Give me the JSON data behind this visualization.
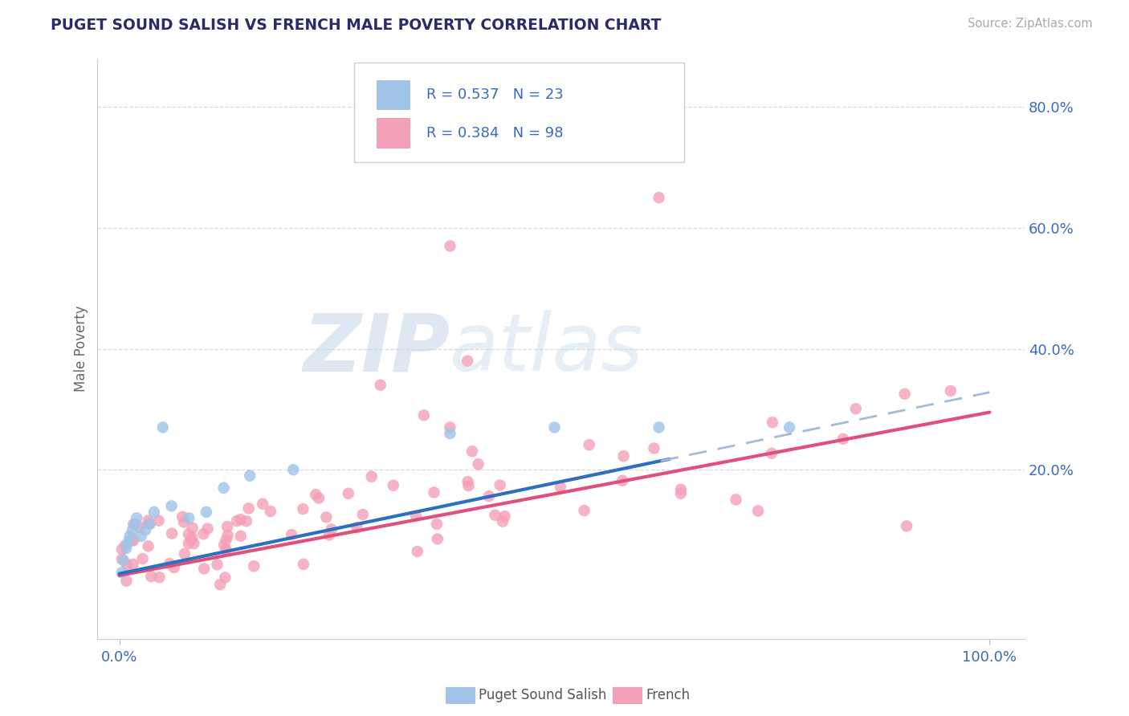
{
  "title": "PUGET SOUND SALISH VS FRENCH MALE POVERTY CORRELATION CHART",
  "source_text": "Source: ZipAtlas.com",
  "ylabel": "Male Poverty",
  "salish_color": "#a0c4e8",
  "french_color": "#f4a0b8",
  "salish_line_color": "#2e6fbe",
  "french_line_color": "#e0507a",
  "salish_dash_color": "#a8c8e8",
  "salish_R": 0.537,
  "salish_N": 23,
  "french_R": 0.384,
  "french_N": 98,
  "legend_label_1": "Puget Sound Salish",
  "legend_label_2": "French",
  "title_color": "#2b2b6b",
  "axis_tick_color": "#3a6abf",
  "watermark_color": "#d8e4f0",
  "background_color": "#ffffff",
  "y_grid_color": "#d8d8d8",
  "ylim": [
    -0.08,
    0.88
  ],
  "xlim": [
    -0.025,
    1.04
  ]
}
